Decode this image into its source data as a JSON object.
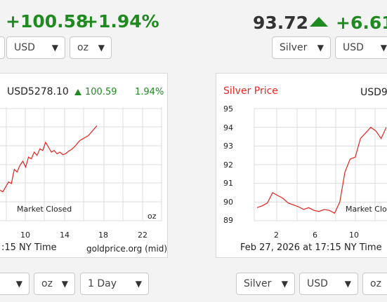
{
  "gold_header": {
    "change": "+100.58",
    "percent": "+1.94%"
  },
  "silver_header": {
    "price": "93.72",
    "change": "+6.61"
  },
  "gold_controls": {
    "currency": "USD",
    "unit": "oz"
  },
  "silver_controls": {
    "metal": "Silver",
    "currency": "USD"
  },
  "gold_chart_card": {
    "price_label": "USD5278.10",
    "change": "100.59",
    "percent": "1.94%",
    "market_status": "Market Closed",
    "unit": "oz",
    "timestamp": ":15 NY Time",
    "source": "goldprice.org (mid)"
  },
  "silver_chart_card": {
    "title": "Silver Price",
    "price_label": "USD9",
    "market_status": "Market Clo",
    "timestamp": "Feb 27, 2026 at 17:15 NY Time"
  },
  "bottom_left_controls": {
    "unit": "oz",
    "range": "1 Day"
  },
  "bottom_right_controls": {
    "metal": "Silver",
    "currency": "USD",
    "unit": "oz"
  },
  "icons": {
    "up_arrow": "triangle-up-icon",
    "dropdown": "chevron-down-icon"
  },
  "colors": {
    "up": "#1f8a1f",
    "line": "#e8231f",
    "title_red": "#e8231f",
    "grid": "#dcdcdc"
  },
  "chart_data": [
    {
      "type": "line",
      "title": "",
      "xlabel": "",
      "ylabel": "",
      "x_ticks": [
        "10",
        "14",
        "18",
        "22"
      ],
      "x": [
        0.0,
        0.5,
        1.0,
        1.5,
        2.0,
        2.5,
        3.0,
        3.5,
        4.0,
        4.5,
        5.0,
        5.5,
        6.0,
        6.5,
        7.0,
        7.5,
        8.0,
        8.5,
        9.0,
        9.5,
        10.0,
        10.5,
        11.0,
        11.5,
        12.0,
        12.5,
        13.0,
        13.5,
        14.0,
        14.5,
        15.0,
        15.5,
        16.0,
        16.5,
        17.0
      ],
      "series": [
        {
          "values": [
            0.2,
            0.18,
            0.24,
            0.3,
            0.28,
            0.45,
            0.42,
            0.5,
            0.55,
            0.48,
            0.6,
            0.58,
            0.66,
            0.62,
            0.7,
            0.68,
            0.78,
            0.72,
            0.66,
            0.68,
            0.64,
            0.66,
            0.63,
            0.64,
            0.67,
            0.69,
            0.72,
            0.76,
            0.8,
            0.82,
            0.84,
            0.86,
            0.9,
            0.94,
            0.98
          ]
        }
      ],
      "grid": true,
      "annotations": [
        "Market Closed",
        "oz"
      ]
    },
    {
      "type": "line",
      "title": "Silver Price",
      "xlabel": "",
      "ylabel": "",
      "yticks": [
        89.0,
        90.0,
        91.0,
        92.0,
        93.0,
        94.0,
        95.0
      ],
      "ylim": [
        89.0,
        95.0
      ],
      "x_ticks": [
        "2",
        "6",
        "10"
      ],
      "x": [
        0.0,
        0.5,
        1.0,
        1.5,
        2.0,
        2.5,
        3.0,
        3.5,
        4.0,
        4.5,
        5.0,
        5.5,
        6.0,
        6.5,
        7.0,
        7.5,
        8.0,
        8.5,
        9.0,
        9.5,
        10.0,
        10.5,
        11.0,
        11.5,
        12.0,
        12.5
      ],
      "series": [
        {
          "values": [
            89.7,
            89.8,
            89.95,
            90.5,
            90.35,
            90.2,
            89.95,
            89.85,
            89.75,
            89.6,
            89.7,
            89.55,
            89.5,
            89.6,
            89.55,
            89.4,
            90.0,
            91.6,
            92.3,
            92.4,
            93.4,
            93.7,
            94.0,
            93.8,
            93.4,
            94.0
          ]
        }
      ],
      "grid": true,
      "annotations": [
        "Market Clo"
      ]
    }
  ]
}
